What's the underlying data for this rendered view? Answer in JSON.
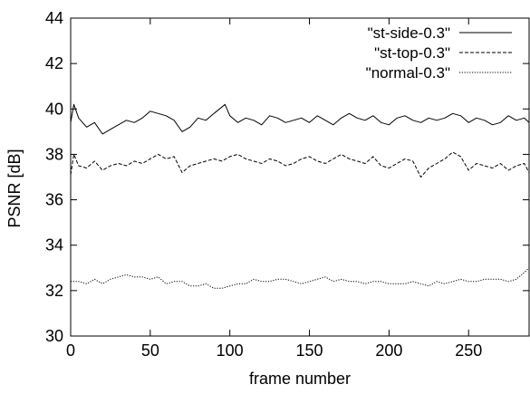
{
  "chart_data": {
    "type": "line",
    "title": "",
    "xlabel": "frame number",
    "ylabel": "PSNR [dB]",
    "xlim": [
      0,
      288
    ],
    "ylim": [
      30,
      44
    ],
    "x_ticks": [
      0,
      50,
      100,
      150,
      200,
      250
    ],
    "y_ticks": [
      30,
      32,
      34,
      36,
      38,
      40,
      42,
      44
    ],
    "legend_position": "top-right",
    "grid": false,
    "series": [
      {
        "name": "\"st-side-0.3\"",
        "style": "solid",
        "x": [
          0,
          2,
          5,
          10,
          15,
          20,
          25,
          30,
          35,
          40,
          45,
          50,
          55,
          60,
          65,
          70,
          75,
          80,
          85,
          90,
          97,
          100,
          105,
          110,
          115,
          120,
          125,
          130,
          135,
          140,
          145,
          150,
          155,
          160,
          165,
          170,
          175,
          180,
          185,
          190,
          195,
          200,
          205,
          210,
          215,
          220,
          225,
          230,
          235,
          240,
          245,
          250,
          255,
          260,
          265,
          270,
          275,
          280,
          285,
          288
        ],
        "values": [
          39.4,
          40.2,
          39.6,
          39.2,
          39.4,
          38.9,
          39.1,
          39.3,
          39.5,
          39.4,
          39.6,
          39.9,
          39.8,
          39.7,
          39.5,
          39.0,
          39.2,
          39.6,
          39.5,
          39.8,
          40.2,
          39.7,
          39.4,
          39.6,
          39.5,
          39.3,
          39.7,
          39.6,
          39.4,
          39.5,
          39.6,
          39.4,
          39.7,
          39.5,
          39.3,
          39.6,
          39.8,
          39.6,
          39.5,
          39.7,
          39.4,
          39.3,
          39.6,
          39.7,
          39.5,
          39.4,
          39.6,
          39.5,
          39.6,
          39.8,
          39.7,
          39.4,
          39.6,
          39.5,
          39.3,
          39.4,
          39.7,
          39.5,
          39.6,
          39.4
        ]
      },
      {
        "name": "\"st-top-0.3\"",
        "style": "dashed",
        "x": [
          0,
          2,
          5,
          10,
          15,
          20,
          25,
          30,
          35,
          40,
          45,
          50,
          55,
          60,
          65,
          70,
          75,
          80,
          85,
          90,
          95,
          100,
          105,
          110,
          115,
          120,
          125,
          130,
          135,
          140,
          145,
          150,
          155,
          160,
          165,
          170,
          175,
          180,
          185,
          190,
          195,
          200,
          205,
          210,
          215,
          220,
          225,
          230,
          235,
          240,
          245,
          250,
          255,
          260,
          265,
          270,
          275,
          280,
          285,
          288
        ],
        "values": [
          37.1,
          38.0,
          37.5,
          37.4,
          37.7,
          37.3,
          37.5,
          37.6,
          37.5,
          37.7,
          37.6,
          37.8,
          38.0,
          37.8,
          37.9,
          37.2,
          37.5,
          37.6,
          37.7,
          37.8,
          37.7,
          37.9,
          38.0,
          37.8,
          37.7,
          37.6,
          37.8,
          37.7,
          37.5,
          37.6,
          37.8,
          37.9,
          37.7,
          37.6,
          37.8,
          38.0,
          37.8,
          37.7,
          37.6,
          37.9,
          37.5,
          37.4,
          37.6,
          37.8,
          37.7,
          37.0,
          37.4,
          37.6,
          37.8,
          38.1,
          37.9,
          37.3,
          37.6,
          37.5,
          37.4,
          37.6,
          37.3,
          37.5,
          37.6,
          37.2
        ]
      },
      {
        "name": "\"normal-0.3\"",
        "style": "dotted",
        "x": [
          0,
          5,
          10,
          15,
          20,
          25,
          30,
          35,
          40,
          45,
          50,
          55,
          60,
          65,
          70,
          75,
          80,
          85,
          90,
          95,
          100,
          105,
          110,
          115,
          120,
          125,
          130,
          135,
          140,
          145,
          150,
          155,
          160,
          165,
          170,
          175,
          180,
          185,
          190,
          195,
          200,
          205,
          210,
          215,
          220,
          225,
          230,
          235,
          240,
          245,
          250,
          255,
          260,
          265,
          270,
          275,
          280,
          285,
          288
        ],
        "values": [
          32.4,
          32.4,
          32.3,
          32.5,
          32.3,
          32.5,
          32.6,
          32.7,
          32.6,
          32.6,
          32.5,
          32.6,
          32.3,
          32.4,
          32.4,
          32.2,
          32.2,
          32.3,
          32.1,
          32.1,
          32.2,
          32.3,
          32.3,
          32.5,
          32.4,
          32.4,
          32.5,
          32.5,
          32.4,
          32.3,
          32.4,
          32.5,
          32.6,
          32.4,
          32.5,
          32.4,
          32.4,
          32.3,
          32.4,
          32.4,
          32.3,
          32.3,
          32.3,
          32.4,
          32.3,
          32.2,
          32.4,
          32.3,
          32.4,
          32.5,
          32.4,
          32.4,
          32.5,
          32.5,
          32.5,
          32.4,
          32.5,
          32.8,
          33.0
        ]
      }
    ]
  }
}
